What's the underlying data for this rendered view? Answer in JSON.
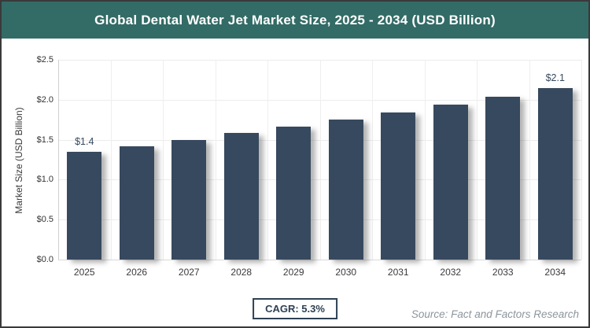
{
  "header": {
    "title": "Global Dental Water Jet Market Size, 2025 - 2034 (USD Billion)"
  },
  "chart_data": {
    "type": "bar",
    "title": "Global Dental Water Jet Market Size, 2025 - 2034 (USD Billion)",
    "categories": [
      "2025",
      "2026",
      "2027",
      "2028",
      "2029",
      "2030",
      "2031",
      "2032",
      "2033",
      "2034"
    ],
    "values": [
      1.35,
      1.42,
      1.5,
      1.58,
      1.66,
      1.75,
      1.84,
      1.94,
      2.04,
      2.15
    ],
    "bar_labels": [
      "$1.4",
      "",
      "",
      "",
      "",
      "",
      "",
      "",
      "",
      "$2.1"
    ],
    "xlabel": "",
    "ylabel": "Market Size (USD Billion)",
    "ylim": [
      0,
      2.5
    ],
    "ytick_step": 0.5,
    "ytick_labels": [
      "$0.0",
      "$0.5",
      "$1.0",
      "$1.5",
      "$2.0",
      "$2.5"
    ],
    "grid": true,
    "legend": null,
    "bar_color": "#37495e"
  },
  "footer": {
    "cagr_label": "CAGR: 5.3%",
    "source": "Source: Fact and Factors Research"
  },
  "colors": {
    "header_bg": "#336b66",
    "header_text": "#ffffff",
    "bar": "#37495e",
    "data_label": "#36495d",
    "axis_text": "#333333",
    "gridline": "#ececec",
    "cagr_border": "#2e4154",
    "source_text": "#8c959c",
    "frame_border": "#3a3a3a"
  }
}
